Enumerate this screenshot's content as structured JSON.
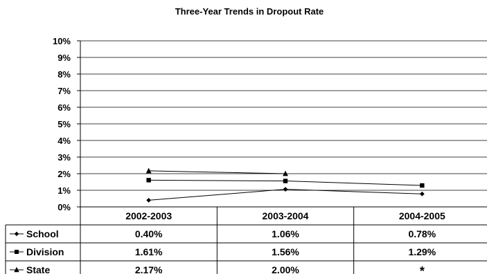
{
  "chart_data": {
    "type": "line",
    "title": "Three-Year Trends in Dropout Rate",
    "categories": [
      "2002-2003",
      "2003-2004",
      "2004-2005"
    ],
    "y_ticks": [
      "0%",
      "1%",
      "2%",
      "3%",
      "4%",
      "5%",
      "6%",
      "7%",
      "8%",
      "9%",
      "10%"
    ],
    "ylim": [
      0,
      10
    ],
    "grid": true,
    "legend": "data-table-below",
    "series": [
      {
        "name": "School",
        "marker": "diamond",
        "values": [
          0.4,
          1.06,
          0.78
        ],
        "labels": [
          "0.40%",
          "1.06%",
          "0.78%"
        ]
      },
      {
        "name": "Division",
        "marker": "square",
        "values": [
          1.61,
          1.56,
          1.29
        ],
        "labels": [
          "1.61%",
          "1.56%",
          "1.29%"
        ]
      },
      {
        "name": "State",
        "marker": "triangle",
        "values": [
          2.17,
          2.0,
          null
        ],
        "labels": [
          "2.17%",
          "2.00%",
          "*"
        ]
      }
    ],
    "colors": {
      "line": "#000000",
      "background": "#ffffff"
    }
  }
}
